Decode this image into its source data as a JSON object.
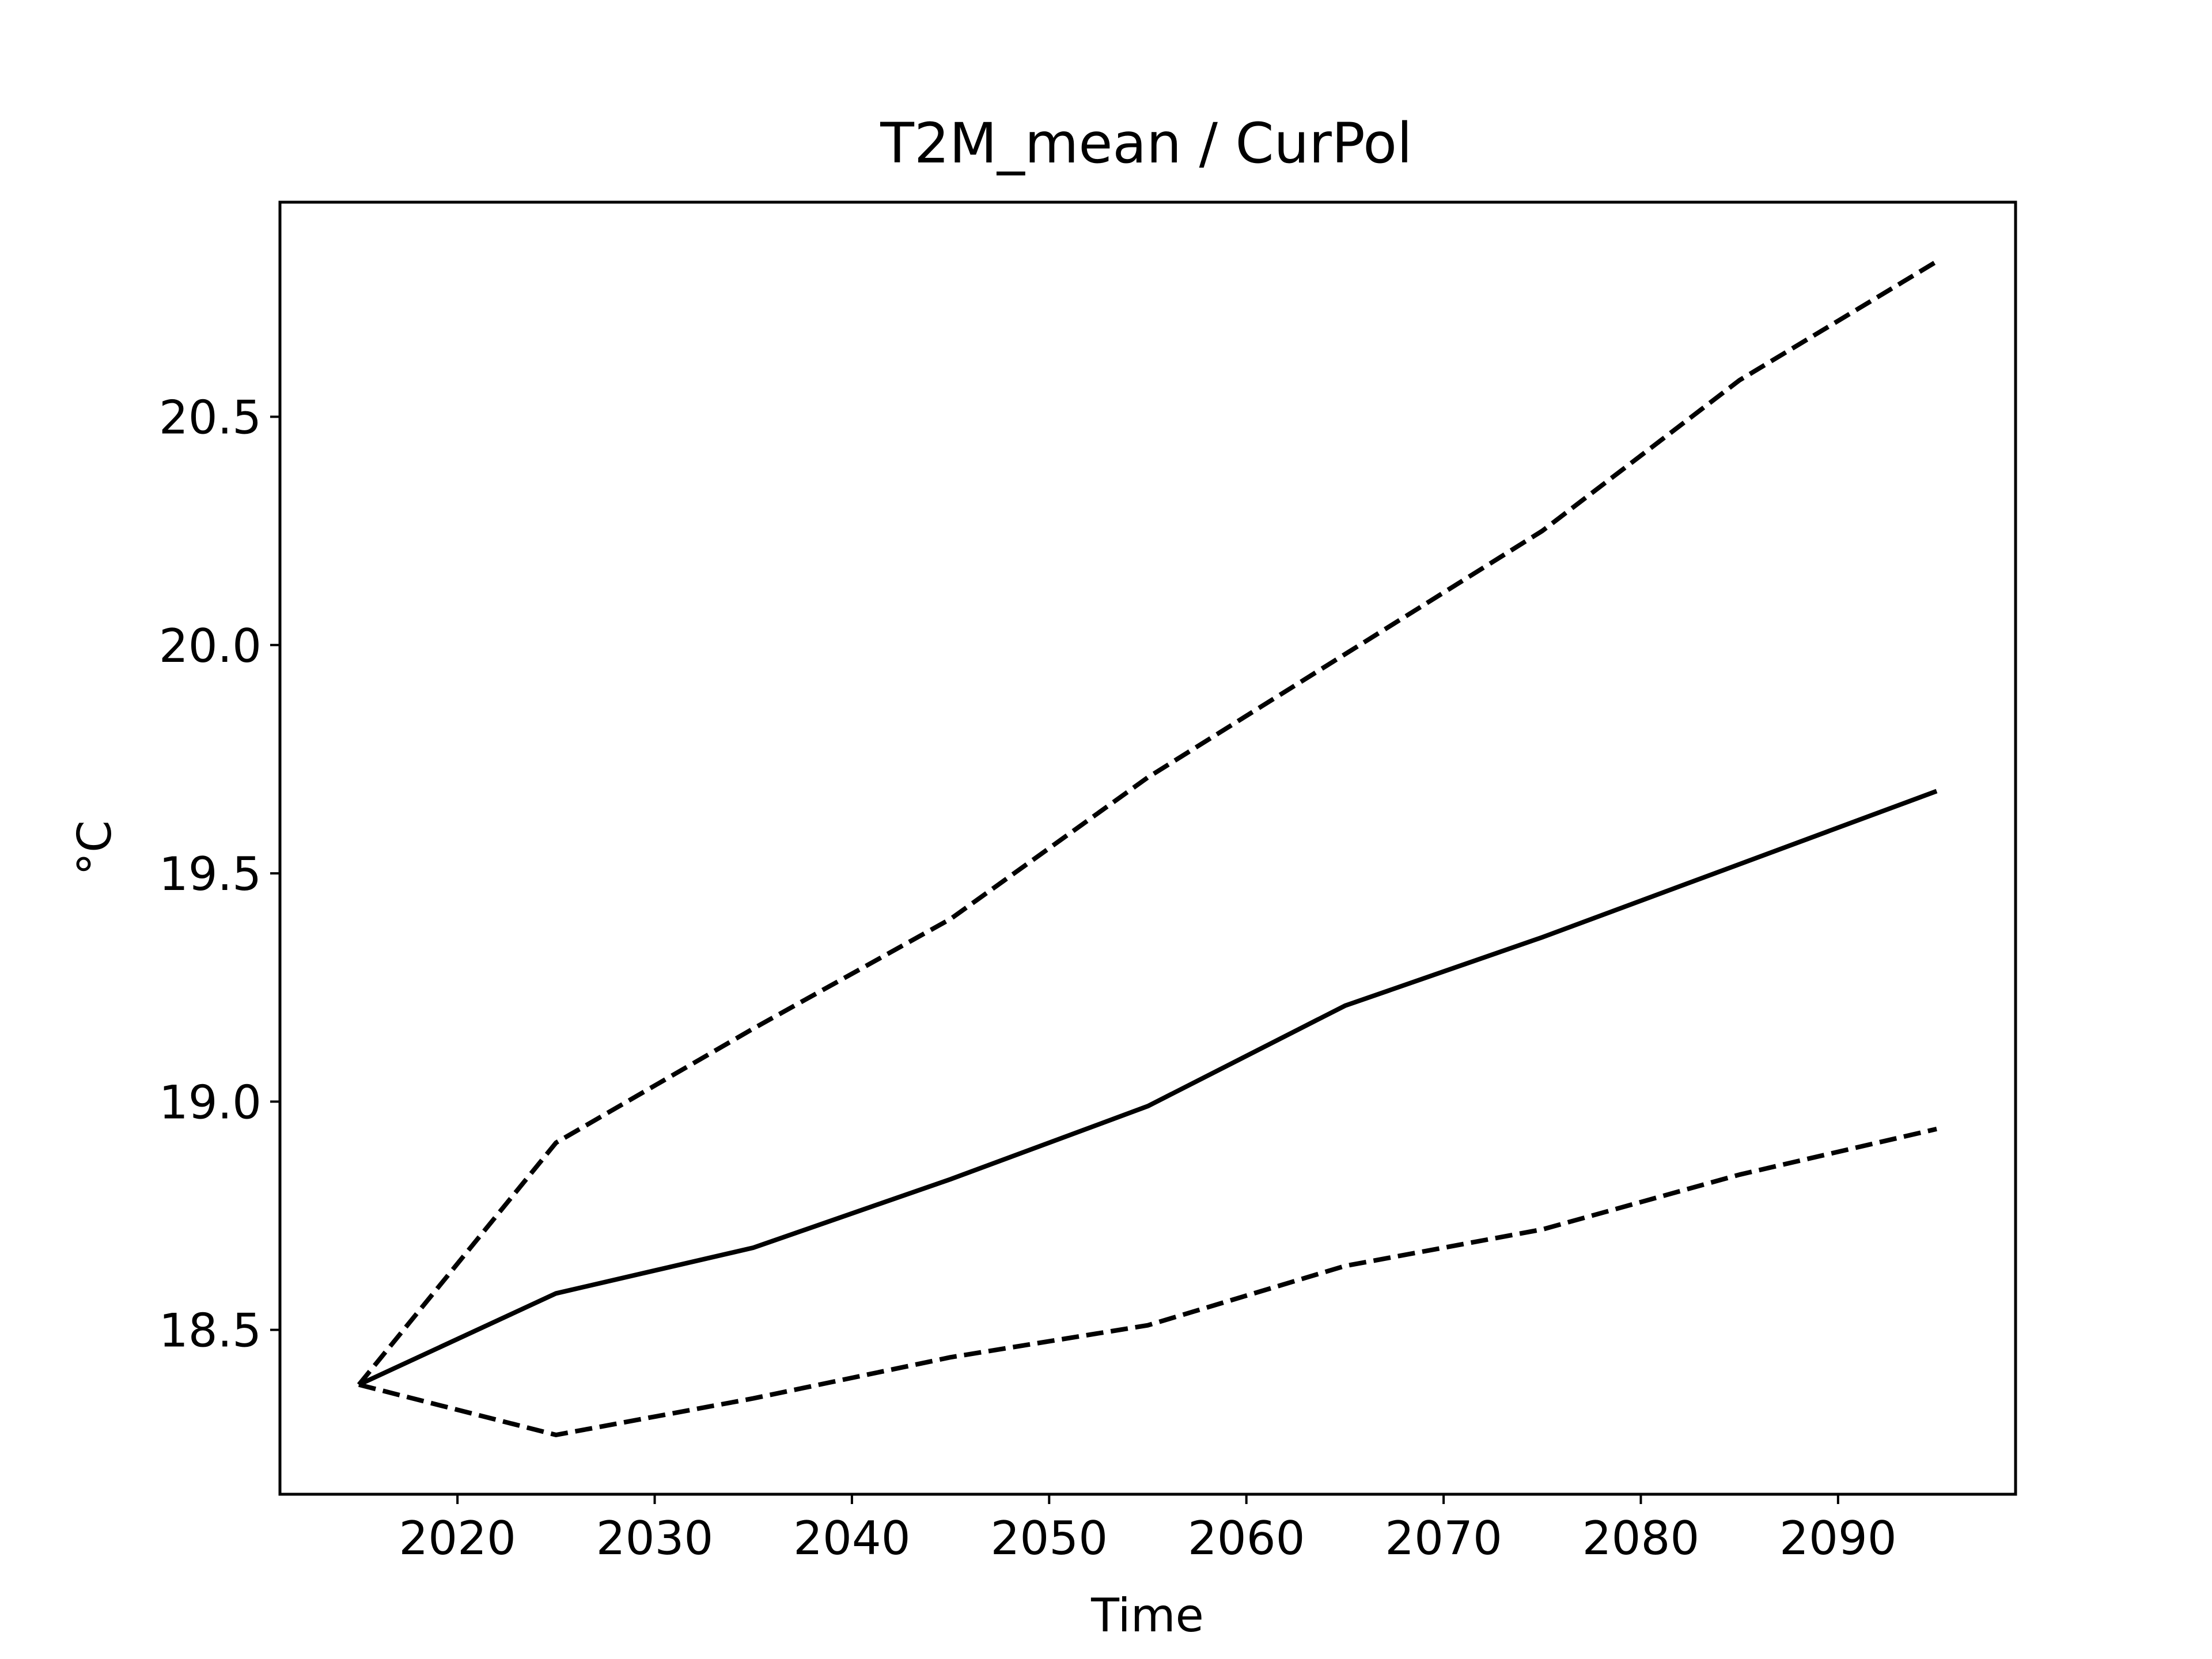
{
  "chart_data": {
    "type": "line",
    "title": "T2M_mean / CurPol",
    "xlabel": "Time",
    "ylabel": "°C",
    "xlim": [
      2011,
      2099
    ],
    "ylim": [
      18.14,
      20.97
    ],
    "xticks": [
      2020,
      2030,
      2040,
      2050,
      2060,
      2070,
      2080,
      2090
    ],
    "xtick_labels": [
      "2020",
      "2030",
      "2040",
      "2050",
      "2060",
      "2070",
      "2080",
      "2090"
    ],
    "yticks": [
      18.5,
      19.0,
      19.5,
      20.0,
      20.5
    ],
    "ytick_labels": [
      "18.5",
      "19.0",
      "19.5",
      "20.0",
      "20.5"
    ],
    "grid": false,
    "legend": false,
    "x": [
      2015,
      2025,
      2035,
      2045,
      2055,
      2065,
      2075,
      2085,
      2095
    ],
    "series": [
      {
        "style": "solid",
        "color": "#000000",
        "values": [
          18.38,
          18.58,
          18.68,
          18.83,
          18.99,
          19.21,
          19.36,
          19.52,
          19.68
        ]
      },
      {
        "style": "dashed",
        "color": "#000000",
        "values": [
          18.38,
          18.91,
          19.16,
          19.4,
          19.71,
          19.98,
          20.25,
          20.58,
          20.84
        ]
      },
      {
        "style": "dashed",
        "color": "#000000",
        "values": [
          18.38,
          18.27,
          18.35,
          18.44,
          18.51,
          18.64,
          18.72,
          18.84,
          18.94
        ]
      }
    ]
  }
}
